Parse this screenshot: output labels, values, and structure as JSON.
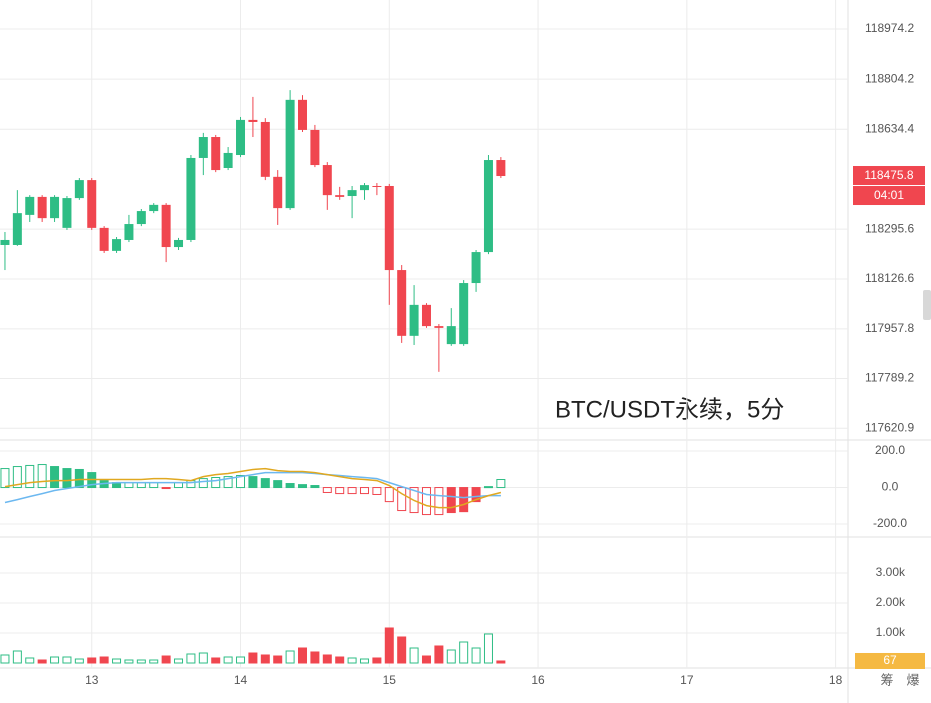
{
  "chart_data": {
    "type": "candlestick",
    "annotation": "BTC/USDT永续，5分",
    "up_color": "#2ebd85",
    "down_color": "#f0464f",
    "open": [
      118242,
      118242,
      118344,
      118405,
      118333,
      118300,
      118401,
      118462,
      118300,
      118222,
      118259,
      118313,
      118357,
      118378,
      118235,
      118259,
      118537,
      118608,
      118503,
      118547,
      118666,
      118659,
      118473,
      118367,
      118734,
      118632,
      118513,
      118411,
      118408,
      118428,
      118442,
      118442,
      118157,
      117934,
      118039,
      117967,
      117906,
      117906,
      118113,
      118218,
      118530
    ],
    "high": [
      118286,
      118428,
      118411,
      118411,
      118411,
      118408,
      118469,
      118469,
      118306,
      118269,
      118344,
      118364,
      118384,
      118384,
      118266,
      118547,
      118622,
      118615,
      118574,
      118676,
      118744,
      118672,
      118496,
      118767,
      118750,
      118649,
      118523,
      118439,
      118442,
      118452,
      118452,
      118449,
      118174,
      118106,
      118045,
      117974,
      118028,
      118123,
      118225,
      118547,
      118540
    ],
    "low": [
      118157,
      118239,
      118320,
      118320,
      118320,
      118293,
      118395,
      118293,
      118215,
      118215,
      118252,
      118306,
      118350,
      118184,
      118225,
      118252,
      118479,
      118489,
      118496,
      118540,
      118608,
      118462,
      118310,
      118361,
      118625,
      118506,
      118361,
      118395,
      118333,
      118395,
      118411,
      118039,
      117910,
      117903,
      117961,
      117812,
      117900,
      117900,
      118083,
      118211,
      118469
    ],
    "close": [
      118259,
      118350,
      118405,
      118333,
      118405,
      118401,
      118462,
      118300,
      118222,
      118262,
      118313,
      118357,
      118378,
      118235,
      118259,
      118537,
      118608,
      118496,
      118554,
      118666,
      118659,
      118473,
      118367,
      118734,
      118632,
      118513,
      118411,
      118405,
      118428,
      118445,
      118439,
      118157,
      117934,
      118039,
      117967,
      117961,
      117967,
      118113,
      118218,
      118530,
      118475.8
    ],
    "countdown": "04:01",
    "ylim": [
      117580.9,
      119072.5
    ],
    "yticks": [
      118974.2,
      118804.2,
      118634.4,
      118295.6,
      118126.6,
      117957.8,
      117789.2,
      117620.9
    ],
    "xlim": [
      -0.4,
      68
    ],
    "xticks": [
      {
        "value": 7,
        "label": "13"
      },
      {
        "value": 19,
        "label": "14"
      },
      {
        "value": 31,
        "label": "15"
      },
      {
        "value": 43,
        "label": "16"
      },
      {
        "value": 55,
        "label": "17"
      },
      {
        "value": 67,
        "label": "18"
      }
    ],
    "grid": true,
    "macd": {
      "hist": [
        104,
        115,
        121,
        126,
        115,
        104,
        99,
        82,
        38,
        27,
        27,
        27,
        27,
        -5,
        27,
        38,
        49,
        55,
        60,
        66,
        60,
        49,
        38,
        22,
        16,
        11,
        -27,
        -33,
        -33,
        -33,
        -38,
        -77,
        -126,
        -137,
        -148,
        -148,
        -137,
        -132,
        -77,
        5,
        44
      ],
      "dif": [
        -82,
        -66,
        -49,
        -33,
        -16,
        -5,
        5,
        16,
        22,
        27,
        27,
        27,
        27,
        27,
        27,
        27,
        33,
        38,
        49,
        60,
        71,
        82,
        82,
        82,
        82,
        77,
        71,
        66,
        60,
        55,
        49,
        27,
        5,
        -16,
        -38,
        -44,
        -49,
        -55,
        -49,
        -44,
        -44
      ],
      "dea": [
        5,
        16,
        27,
        33,
        38,
        38,
        44,
        44,
        44,
        44,
        44,
        44,
        49,
        49,
        44,
        38,
        60,
        71,
        77,
        88,
        99,
        104,
        93,
        88,
        88,
        82,
        71,
        60,
        49,
        44,
        38,
        11,
        -33,
        -71,
        -99,
        -110,
        -110,
        -93,
        -66,
        -44,
        -27
      ],
      "dif_color": "#6cb8f0",
      "dea_color": "#e0a820",
      "ylim": [
        -249,
        244
      ],
      "yticks": [
        {
          "value": 200,
          "label": "200.0"
        },
        {
          "value": 0,
          "label": "0.0"
        },
        {
          "value": -200,
          "label": "-200.0"
        }
      ]
    },
    "volume": {
      "values": [
        267,
        400,
        167,
        100,
        200,
        200,
        133,
        167,
        200,
        133,
        100,
        100,
        100,
        233,
        133,
        300,
        333,
        167,
        200,
        200,
        333,
        267,
        233,
        400,
        500,
        367,
        267,
        200,
        167,
        133,
        167,
        1167,
        867,
        500,
        233,
        567,
        433,
        700,
        500,
        967,
        67
      ],
      "label_color": "#f5b942",
      "ylim": [
        0,
        4000
      ],
      "yticks": [
        {
          "value": 3000,
          "label": "3.00k"
        },
        {
          "value": 2000,
          "label": "2.00k"
        },
        {
          "value": 1000,
          "label": "1.00k"
        }
      ]
    },
    "footer_icons": [
      "筹",
      "爆"
    ]
  }
}
